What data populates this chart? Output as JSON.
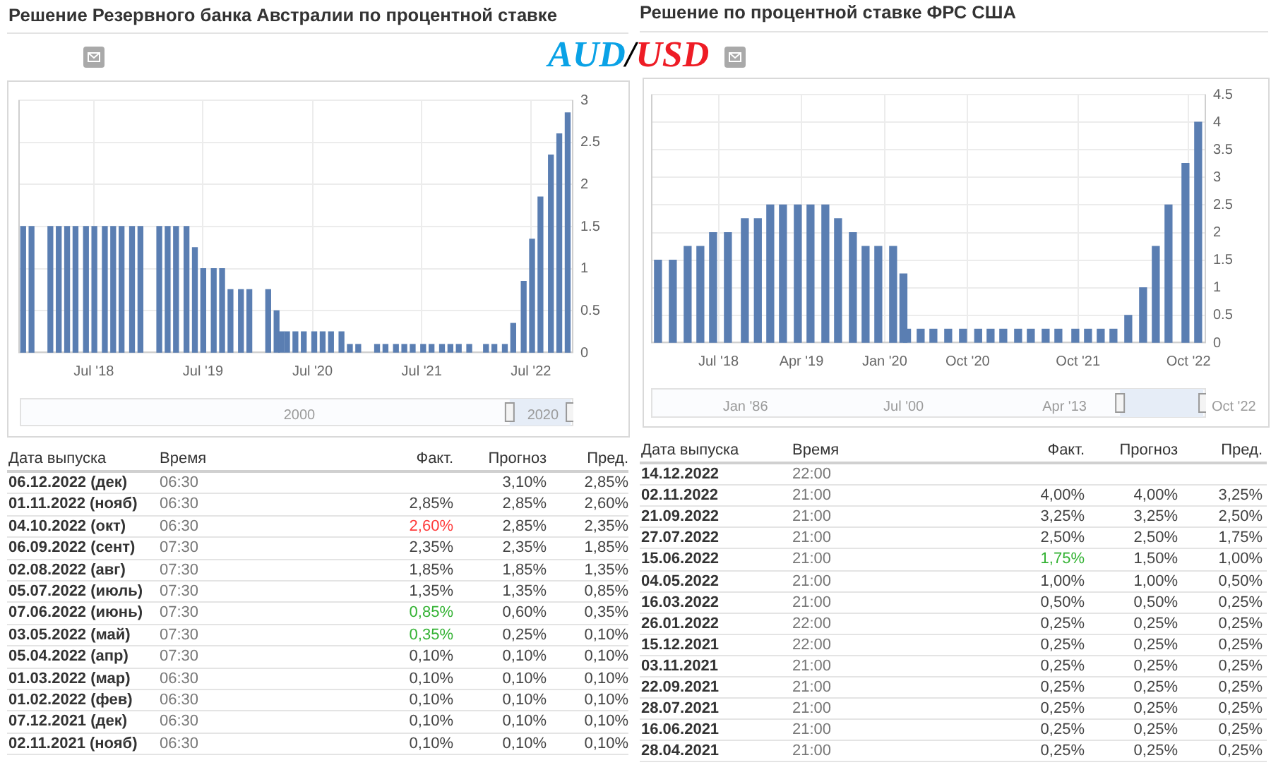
{
  "chart_data": [
    {
      "type": "bar",
      "title": "Решение Резервного банка Австралии по процентной ставке",
      "x": [
        "2017-11-07",
        "2017-12-05",
        "2018-02-06",
        "2018-03-06",
        "2018-04-03",
        "2018-05-01",
        "2018-06-05",
        "2018-07-03",
        "2018-08-07",
        "2018-09-04",
        "2018-10-02",
        "2018-11-06",
        "2018-12-04",
        "2019-02-05",
        "2019-03-05",
        "2019-04-02",
        "2019-05-07",
        "2019-06-04",
        "2019-07-02",
        "2019-08-06",
        "2019-09-03",
        "2019-10-01",
        "2019-11-05",
        "2019-12-03",
        "2020-02-04",
        "2020-03-03",
        "2020-03-19",
        "2020-04-07",
        "2020-05-05",
        "2020-06-02",
        "2020-07-07",
        "2020-08-04",
        "2020-09-01",
        "2020-10-06",
        "2020-11-03",
        "2020-12-01",
        "2021-02-02",
        "2021-03-02",
        "2021-04-06",
        "2021-05-04",
        "2021-06-01",
        "2021-07-06",
        "2021-08-03",
        "2021-09-07",
        "2021-10-05",
        "2021-11-02",
        "2021-12-07",
        "2022-02-01",
        "2022-03-01",
        "2022-04-05",
        "2022-05-03",
        "2022-06-07",
        "2022-07-05",
        "2022-08-02",
        "2022-09-06",
        "2022-10-04",
        "2022-11-01"
      ],
      "values": [
        1.5,
        1.5,
        1.5,
        1.5,
        1.5,
        1.5,
        1.5,
        1.5,
        1.5,
        1.5,
        1.5,
        1.5,
        1.5,
        1.5,
        1.5,
        1.5,
        1.5,
        1.25,
        1,
        1,
        1,
        0.75,
        0.75,
        0.75,
        0.75,
        0.5,
        0.25,
        0.25,
        0.25,
        0.25,
        0.25,
        0.25,
        0.25,
        0.25,
        0.1,
        0.1,
        0.1,
        0.1,
        0.1,
        0.1,
        0.1,
        0.1,
        0.1,
        0.1,
        0.1,
        0.1,
        0.1,
        0.1,
        0.1,
        0.1,
        0.35,
        0.85,
        1.35,
        1.85,
        2.35,
        2.6,
        2.85
      ],
      "color": "#5a7eb2",
      "xlim": [
        "2017-10-22",
        "2022-11-20"
      ],
      "xticks": [
        {
          "value": "2018-07",
          "label": "Jul '18"
        },
        {
          "value": "2019-07",
          "label": "Jul '19"
        },
        {
          "value": "2020-07",
          "label": "Jul '20"
        },
        {
          "value": "2021-07",
          "label": "Jul '21"
        },
        {
          "value": "2022-07",
          "label": "Jul '22"
        }
      ],
      "ylim": [
        0,
        3
      ],
      "yticks": [
        0,
        0.5,
        1,
        1.5,
        2,
        2.5,
        3
      ],
      "grid": true,
      "annotations": [
        "2000",
        "2020"
      ]
    },
    {
      "type": "bar",
      "title": "Решение по процентной ставке ФРС США",
      "x": [
        "2017-12-13",
        "2018-01-31",
        "2018-03-21",
        "2018-05-02",
        "2018-06-13",
        "2018-08-01",
        "2018-09-26",
        "2018-11-08",
        "2018-12-19",
        "2019-01-30",
        "2019-03-20",
        "2019-05-01",
        "2019-06-19",
        "2019-07-31",
        "2019-09-18",
        "2019-10-30",
        "2019-12-11",
        "2020-01-29",
        "2020-03-03",
        "2020-03-15",
        "2020-04-29",
        "2020-06-10",
        "2020-07-29",
        "2020-09-16",
        "2020-11-05",
        "2020-12-16",
        "2021-01-27",
        "2021-03-17",
        "2021-04-28",
        "2021-06-16",
        "2021-07-28",
        "2021-09-22",
        "2021-11-03",
        "2021-12-15",
        "2022-01-26",
        "2022-03-16",
        "2022-05-04",
        "2022-06-15",
        "2022-07-27",
        "2022-09-21",
        "2022-11-02"
      ],
      "values": [
        1.5,
        1.5,
        1.75,
        1.75,
        2,
        2,
        2.25,
        2.25,
        2.5,
        2.5,
        2.5,
        2.5,
        2.5,
        2.25,
        2,
        1.75,
        1.75,
        1.75,
        1.25,
        0.25,
        0.25,
        0.25,
        0.25,
        0.25,
        0.25,
        0.25,
        0.25,
        0.25,
        0.25,
        0.25,
        0.25,
        0.25,
        0.25,
        0.25,
        0.25,
        0.5,
        1,
        1.75,
        2.5,
        3.25,
        4
      ],
      "color": "#5a7eb2",
      "xlim": [
        "2017-11-20",
        "2022-11-28"
      ],
      "xticks": [
        {
          "value": "2018-07",
          "label": "Jul '18"
        },
        {
          "value": "2019-04",
          "label": "Apr '19"
        },
        {
          "value": "2020-01",
          "label": "Jan '20"
        },
        {
          "value": "2020-10",
          "label": "Oct '20"
        },
        {
          "value": "2021-10",
          "label": "Oct '21"
        },
        {
          "value": "2022-10",
          "label": "Oct '22"
        }
      ],
      "ylim": [
        0,
        4.5
      ],
      "yticks": [
        0,
        0.5,
        1,
        1.5,
        2,
        2.5,
        3,
        3.5,
        4,
        4.5
      ],
      "grid": true,
      "annotations": [
        "Jan '86",
        "Jul '00",
        "Apr '13",
        "Oct '22"
      ]
    },
    {
      "type": "other",
      "categories": [
        "Дата выпуска",
        "Время",
        "Факт.",
        "Прогноз",
        "Пред."
      ],
      "annotations": [
        "06.12.2022 (дек)",
        "06:30",
        null,
        "3,10%",
        "2,85%",
        "01.11.2022 (нояб)",
        "06:30",
        "2,85%",
        "2,85%",
        "2,60%",
        "04.10.2022 (окт)",
        "06:30",
        "2,60%",
        "2,85%",
        "2,35%",
        "06.09.2022 (сент)",
        "07:30",
        "2,35%",
        "2,35%",
        "1,85%",
        "02.08.2022 (авг)",
        "07:30",
        "1,85%",
        "1,85%",
        "1,35%",
        "05.07.2022 (июль)",
        "07:30",
        "1,35%",
        "1,35%",
        "0,85%",
        "07.06.2022 (июнь)",
        "07:30",
        "0,85%",
        "0,60%",
        "0,35%",
        "03.05.2022 (май)",
        "07:30",
        "0,35%",
        "0,25%",
        "0,10%",
        "05.04.2022 (апр)",
        "07:30",
        "0,10%",
        "0,10%",
        "0,10%",
        "01.03.2022 (мар)",
        "06:30",
        "0,10%",
        "0,10%",
        "0,10%",
        "01.02.2022 (фев)",
        "06:30",
        "0,10%",
        "0,10%",
        "0,10%",
        "07.12.2021 (дек)",
        "06:30",
        "0,10%",
        "0,10%",
        "0,10%",
        "02.11.2021 (нояб)",
        "06:30",
        "0,10%",
        "0,10%",
        "0,10%"
      ],
      "colors": [
        null,
        null,
        null,
        null,
        null,
        null,
        null,
        null,
        null,
        null,
        null,
        null,
        "#ff3b3b",
        null,
        null,
        null,
        null,
        null,
        null,
        null,
        null,
        null,
        null,
        null,
        null,
        null,
        null,
        null,
        null,
        null,
        null,
        null,
        "#33b233",
        null,
        null,
        null,
        null,
        "#33b233",
        null,
        null,
        null,
        null,
        null,
        null,
        null,
        null,
        null,
        null,
        null,
        null,
        null,
        null,
        null,
        null,
        null,
        null,
        null,
        null,
        null,
        null,
        null,
        null,
        null,
        null,
        null
      ]
    },
    {
      "type": "other",
      "categories": [
        "Дата выпуска",
        "Время",
        "Факт.",
        "Прогноз",
        "Пред."
      ],
      "annotations": [
        "14.12.2022",
        "22:00",
        null,
        null,
        null,
        "02.11.2022",
        "21:00",
        "4,00%",
        "4,00%",
        "3,25%",
        "21.09.2022",
        "21:00",
        "3,25%",
        "3,25%",
        "2,50%",
        "27.07.2022",
        "21:00",
        "2,50%",
        "2,50%",
        "1,75%",
        "15.06.2022",
        "21:00",
        "1,75%",
        "1,50%",
        "1,00%",
        "04.05.2022",
        "21:00",
        "1,00%",
        "1,00%",
        "0,50%",
        "16.03.2022",
        "21:00",
        "0,50%",
        "0,50%",
        "0,25%",
        "26.01.2022",
        "22:00",
        "0,25%",
        "0,25%",
        "0,25%",
        "15.12.2021",
        "22:00",
        "0,25%",
        "0,25%",
        "0,25%",
        "03.11.2021",
        "21:00",
        "0,25%",
        "0,25%",
        "0,25%",
        "22.09.2021",
        "21:00",
        "0,25%",
        "0,25%",
        "0,25%",
        "28.07.2021",
        "21:00",
        "0,25%",
        "0,25%",
        "0,25%",
        "16.06.2021",
        "21:00",
        "0,25%",
        "0,25%",
        "0,25%",
        "28.04.2021",
        "21:00",
        "0,25%",
        "0,25%",
        "0,25%"
      ],
      "colors": [
        null,
        null,
        null,
        null,
        null,
        null,
        null,
        null,
        null,
        null,
        null,
        null,
        null,
        null,
        null,
        null,
        null,
        null,
        null,
        null,
        null,
        null,
        "#33b233",
        null,
        null,
        null,
        null,
        null,
        null,
        null,
        null,
        null,
        null,
        null,
        null,
        null,
        null,
        null,
        null,
        null,
        null,
        null,
        null,
        null,
        null,
        null,
        null,
        null,
        null,
        null,
        null,
        null,
        null,
        null,
        null,
        null,
        null,
        null,
        null,
        null,
        null,
        null,
        null,
        null,
        null,
        null,
        null,
        null,
        null,
        null
      ]
    },
    {
      "type": "other",
      "annotations": [
        "AUD",
        "/",
        "USD"
      ],
      "colors": [
        "#0aa2e6",
        "#000000",
        "#ee1c25"
      ]
    }
  ]
}
